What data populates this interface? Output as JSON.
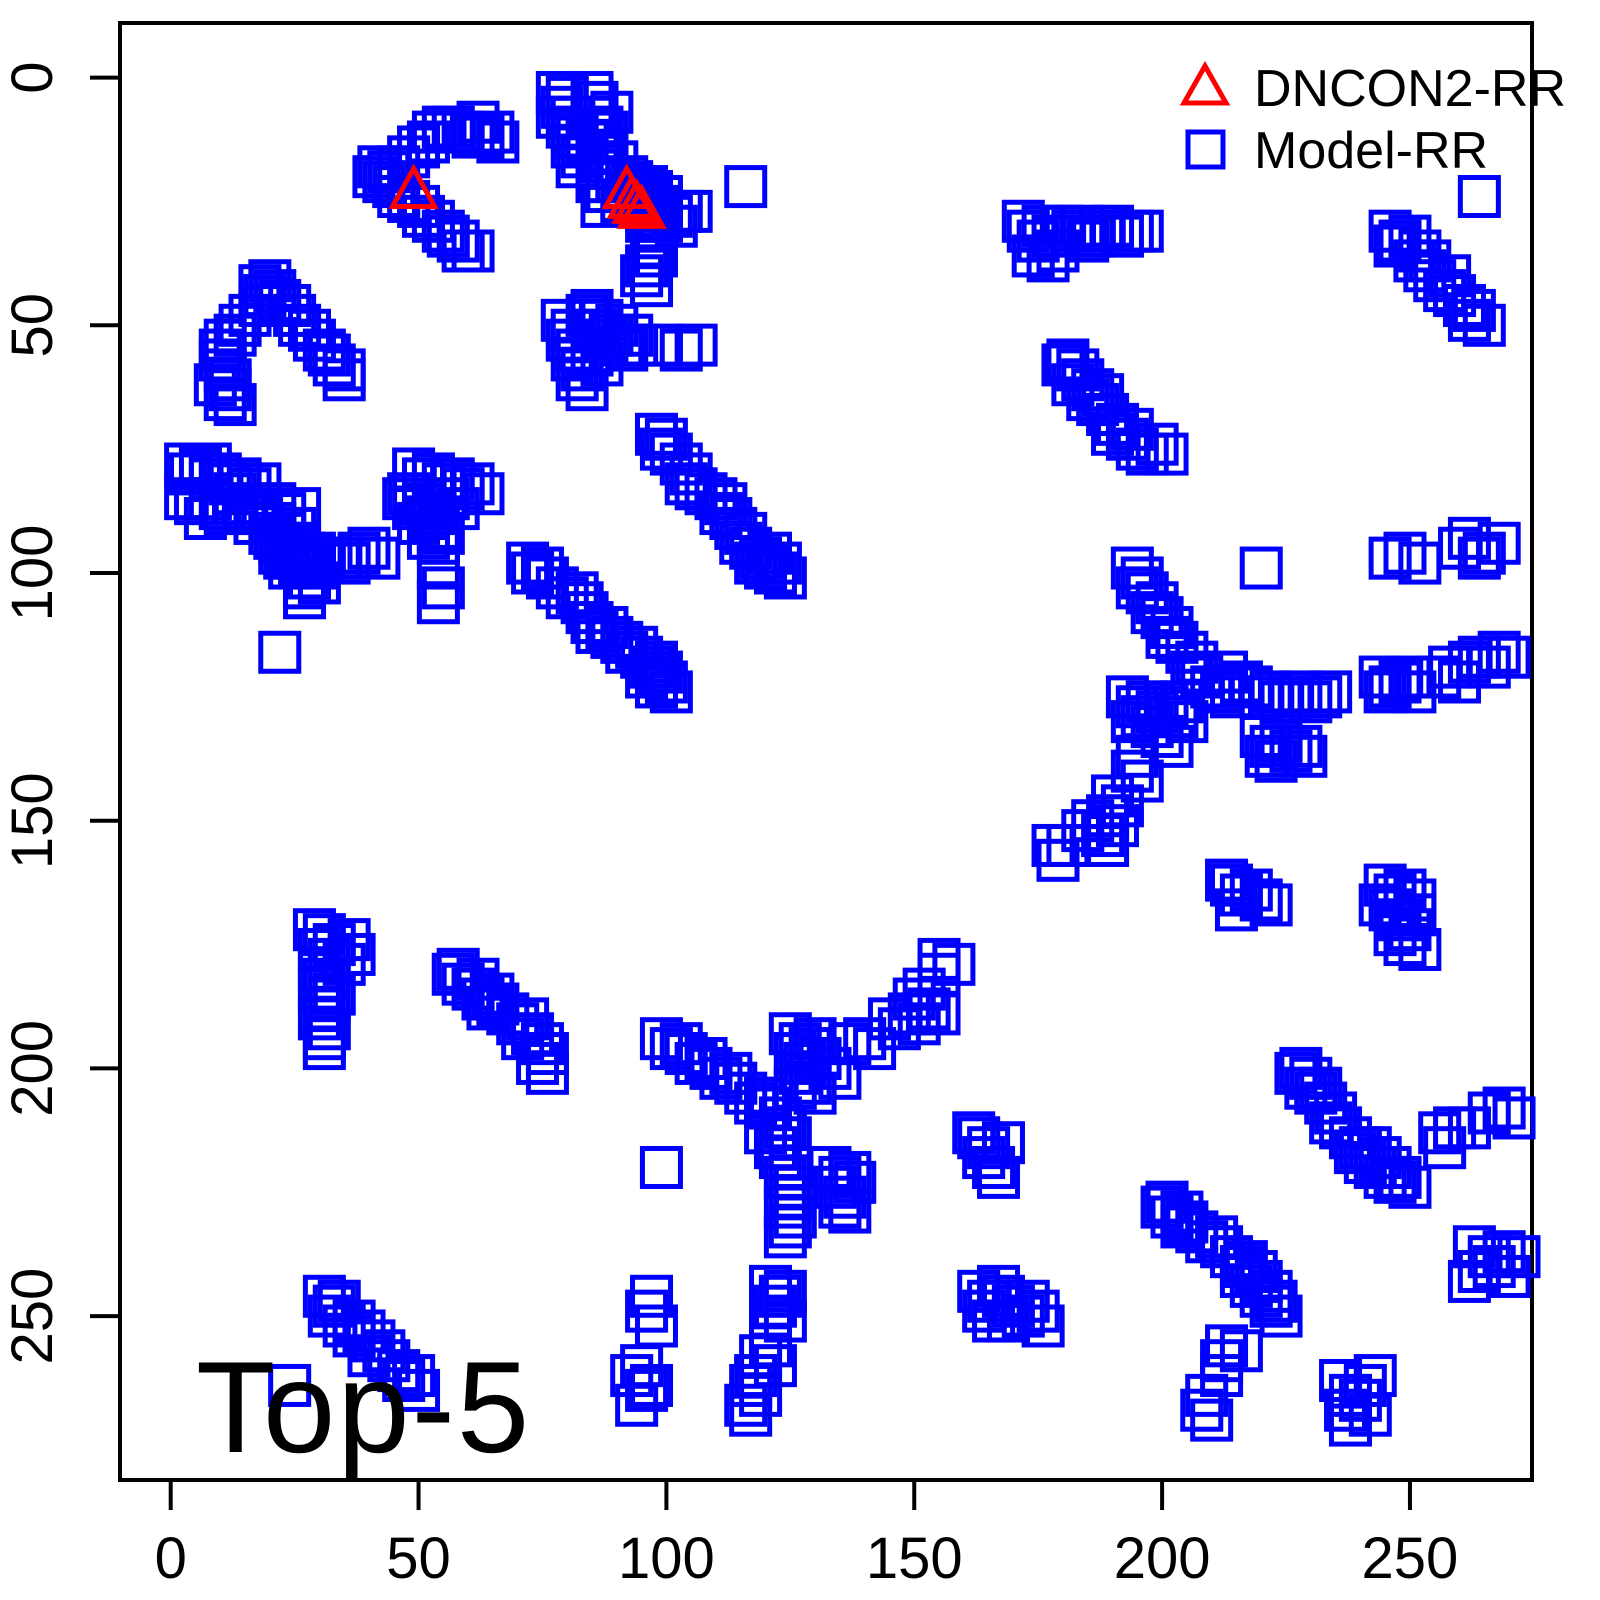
{
  "chart_data": {
    "type": "scatter",
    "title": "",
    "xlabel": "",
    "ylabel": "",
    "annotation": "Top-5",
    "x_ticks": [
      0,
      50,
      100,
      150,
      200,
      250
    ],
    "y_ticks": [
      0,
      50,
      100,
      150,
      200,
      250
    ],
    "x_range": [
      -10,
      275
    ],
    "y_range": [
      -11,
      283
    ],
    "y_axis_inverted": true,
    "grid": false,
    "legend_position": "top-right",
    "colors": {
      "dncon2": "#FF0000",
      "model": "#0000FF",
      "axis": "#000000"
    },
    "legend": [
      {
        "label": "DNCON2-RR",
        "marker": "triangle",
        "color": "#FF0000"
      },
      {
        "label": "Model-RR",
        "marker": "square",
        "color": "#0000FF"
      }
    ],
    "series": [
      {
        "name": "DNCON2-RR",
        "marker": "triangle",
        "color": "#FF0000",
        "mirrored": false,
        "points": [
          [
            49,
            23
          ],
          [
            92,
            23
          ],
          [
            93,
            25
          ],
          [
            94,
            26
          ],
          [
            95,
            27
          ]
        ]
      },
      {
        "name": "Model-RR",
        "marker": "square",
        "color": "#0000FF",
        "mirrored": true,
        "points": [
          [
            65,
            11
          ],
          [
            63,
            12
          ],
          [
            61,
            12
          ],
          [
            59,
            11
          ],
          [
            57,
            10
          ],
          [
            55,
            10
          ],
          [
            53,
            11
          ],
          [
            52,
            13
          ],
          [
            50,
            14
          ],
          [
            48,
            16
          ],
          [
            46,
            18
          ],
          [
            44,
            19
          ],
          [
            42,
            18
          ],
          [
            41,
            20
          ],
          [
            43,
            21
          ],
          [
            45,
            22
          ],
          [
            46,
            24
          ],
          [
            48,
            25
          ],
          [
            50,
            26
          ],
          [
            51,
            28
          ],
          [
            53,
            29
          ],
          [
            55,
            31
          ],
          [
            56,
            32
          ],
          [
            58,
            33
          ],
          [
            59,
            35
          ],
          [
            61,
            35
          ],
          [
            62,
            9
          ],
          [
            66,
            13
          ],
          [
            78,
            3
          ],
          [
            80,
            4
          ],
          [
            79,
            6
          ],
          [
            81,
            8
          ],
          [
            80,
            10
          ],
          [
            78,
            8
          ],
          [
            82,
            12
          ],
          [
            81,
            14
          ],
          [
            83,
            16
          ],
          [
            82,
            18
          ],
          [
            85,
            3
          ],
          [
            86,
            5
          ],
          [
            85,
            8
          ],
          [
            87,
            10
          ],
          [
            86,
            13
          ],
          [
            88,
            15
          ],
          [
            87,
            17
          ],
          [
            89,
            7
          ],
          [
            88,
            11
          ],
          [
            84,
            13
          ],
          [
            90,
            17
          ],
          [
            90,
            21
          ],
          [
            92,
            23
          ],
          [
            94,
            22
          ],
          [
            95,
            24
          ],
          [
            97,
            25
          ],
          [
            94,
            26
          ],
          [
            96,
            27
          ],
          [
            98,
            28
          ],
          [
            99,
            26
          ],
          [
            101,
            28
          ],
          [
            99,
            29
          ],
          [
            102,
            30
          ],
          [
            103,
            27
          ],
          [
            91,
            25
          ],
          [
            97,
            23
          ],
          [
            93,
            21
          ],
          [
            99,
            24
          ],
          [
            96,
            29
          ],
          [
            92,
            20
          ],
          [
            96,
            22
          ],
          [
            97,
            31
          ],
          [
            97,
            34
          ],
          [
            98,
            36
          ],
          [
            96,
            38
          ],
          [
            95,
            40
          ],
          [
            97,
            42
          ],
          [
            105,
            27
          ],
          [
            86,
            21
          ],
          [
            88,
            23
          ],
          [
            87,
            26
          ],
          [
            116,
            22
          ],
          [
            79,
            49
          ],
          [
            81,
            51
          ],
          [
            80,
            53
          ],
          [
            82,
            55
          ],
          [
            81,
            57
          ],
          [
            83,
            59
          ],
          [
            82,
            61
          ],
          [
            84,
            63
          ],
          [
            85,
            47
          ],
          [
            87,
            49
          ],
          [
            86,
            51
          ],
          [
            88,
            53
          ],
          [
            90,
            50
          ],
          [
            89,
            52
          ],
          [
            91,
            54
          ],
          [
            93,
            52
          ],
          [
            92,
            55
          ],
          [
            94,
            54
          ],
          [
            99,
            54
          ],
          [
            103,
            55
          ],
          [
            106,
            54
          ],
          [
            85,
            56
          ],
          [
            87,
            58
          ],
          [
            84,
            48
          ],
          [
            173,
            31
          ],
          [
            175,
            33
          ],
          [
            174,
            36
          ],
          [
            176,
            30
          ],
          [
            178,
            32
          ],
          [
            180,
            30
          ],
          [
            182,
            31
          ],
          [
            184,
            30
          ],
          [
            186,
            32
          ],
          [
            188,
            31
          ],
          [
            190,
            30
          ],
          [
            192,
            32
          ],
          [
            194,
            31
          ],
          [
            196,
            31
          ],
          [
            177,
            37
          ],
          [
            179,
            35
          ],
          [
            172,
            29
          ],
          [
            185,
            33
          ],
          [
            246,
            31
          ],
          [
            248,
            33
          ],
          [
            250,
            32
          ],
          [
            252,
            35
          ],
          [
            254,
            37
          ],
          [
            253,
            39
          ],
          [
            255,
            41
          ],
          [
            257,
            43
          ],
          [
            259,
            44
          ],
          [
            261,
            46
          ],
          [
            263,
            47
          ],
          [
            262,
            49
          ],
          [
            265,
            50
          ],
          [
            258,
            40
          ],
          [
            247,
            34
          ],
          [
            251,
            37
          ],
          [
            264,
            24
          ],
          [
            181,
            57
          ],
          [
            183,
            59
          ],
          [
            184,
            61
          ],
          [
            186,
            63
          ],
          [
            185,
            65
          ],
          [
            187,
            66
          ],
          [
            189,
            68
          ],
          [
            191,
            70
          ],
          [
            190,
            72
          ],
          [
            193,
            73
          ],
          [
            195,
            75
          ],
          [
            197,
            76
          ],
          [
            199,
            74
          ],
          [
            201,
            76
          ],
          [
            182,
            62
          ],
          [
            188,
            64
          ],
          [
            180,
            58
          ],
          [
            194,
            71
          ],
          [
            220,
            99
          ],
          [
            194,
            99
          ],
          [
            196,
            101
          ],
          [
            98,
            72
          ],
          [
            100,
            73
          ],
          [
            99,
            75
          ],
          [
            101,
            76
          ],
          [
            103,
            78
          ],
          [
            105,
            80
          ],
          [
            104,
            82
          ],
          [
            106,
            83
          ],
          [
            108,
            84
          ],
          [
            110,
            85
          ],
          [
            112,
            86
          ],
          [
            111,
            88
          ],
          [
            113,
            89
          ],
          [
            114,
            91
          ],
          [
            116,
            92
          ],
          [
            115,
            94
          ],
          [
            117,
            95
          ],
          [
            119,
            97
          ],
          [
            118,
            98
          ],
          [
            120,
            99
          ],
          [
            122,
            100
          ],
          [
            124,
            101
          ],
          [
            121,
            96
          ],
          [
            123,
            98
          ],
          [
            195,
            103
          ],
          [
            197,
            104
          ],
          [
            199,
            106
          ],
          [
            198,
            108
          ],
          [
            200,
            109
          ],
          [
            202,
            111
          ],
          [
            201,
            113
          ],
          [
            203,
            114
          ],
          [
            205,
            116
          ],
          [
            207,
            118
          ],
          [
            206,
            120
          ],
          [
            208,
            121
          ],
          [
            210,
            123
          ],
          [
            212,
            124
          ],
          [
            214,
            125
          ],
          [
            216,
            122
          ],
          [
            213,
            120
          ],
          [
            218,
            123
          ],
          [
            220,
            125
          ],
          [
            222,
            124
          ],
          [
            224,
            126
          ],
          [
            226,
            125
          ],
          [
            228,
            124
          ],
          [
            230,
            126
          ],
          [
            232,
            125
          ],
          [
            234,
            124
          ],
          [
            193,
            125
          ],
          [
            195,
            127
          ],
          [
            197,
            126
          ],
          [
            199,
            128
          ],
          [
            201,
            127
          ],
          [
            203,
            129
          ],
          [
            194,
            130
          ],
          [
            196,
            129
          ],
          [
            198,
            131
          ],
          [
            204,
            126
          ],
          [
            205,
            130
          ],
          [
            200,
            133
          ],
          [
            202,
            135
          ],
          [
            195,
            137
          ],
          [
            194,
            140
          ],
          [
            196,
            142
          ],
          [
            190,
            145
          ],
          [
            192,
            147
          ],
          [
            189,
            149
          ],
          [
            191,
            151
          ],
          [
            188,
            153
          ],
          [
            186,
            150
          ],
          [
            189,
            155
          ],
          [
            184,
            152
          ],
          [
            181,
            155
          ],
          [
            179,
            158
          ],
          [
            178,
            155
          ],
          [
            220,
            133
          ],
          [
            222,
            135
          ],
          [
            224,
            134
          ],
          [
            226,
            136
          ],
          [
            228,
            135
          ],
          [
            229,
            137
          ],
          [
            221,
            137
          ],
          [
            223,
            138
          ],
          [
            244,
            121
          ],
          [
            246,
            123
          ],
          [
            248,
            122
          ],
          [
            250,
            121
          ],
          [
            251,
            124
          ],
          [
            245,
            124
          ],
          [
            256,
            121
          ],
          [
            258,
            119
          ],
          [
            260,
            122
          ],
          [
            262,
            118
          ],
          [
            264,
            117
          ],
          [
            266,
            119
          ],
          [
            268,
            116
          ],
          [
            270,
            117
          ],
          [
            249,
            96
          ],
          [
            252,
            98
          ],
          [
            246,
            97
          ],
          [
            262,
            93
          ],
          [
            265,
            96
          ],
          [
            260,
            95
          ],
          [
            264,
            97
          ],
          [
            268,
            94
          ],
          [
            214,
            163
          ],
          [
            216,
            165
          ],
          [
            218,
            164
          ],
          [
            220,
            166
          ],
          [
            222,
            167
          ],
          [
            215,
            168
          ],
          [
            213,
            162
          ],
          [
            245,
            163
          ],
          [
            247,
            165
          ],
          [
            249,
            164
          ],
          [
            251,
            166
          ],
          [
            246,
            168
          ],
          [
            248,
            170
          ],
          [
            250,
            172
          ],
          [
            247,
            173
          ],
          [
            249,
            175
          ],
          [
            252,
            176
          ],
          [
            244,
            167
          ],
          [
            251,
            169
          ],
          [
            228,
            200
          ],
          [
            230,
            202
          ],
          [
            229,
            204
          ],
          [
            231,
            205
          ],
          [
            233,
            207
          ],
          [
            235,
            209
          ],
          [
            234,
            211
          ],
          [
            236,
            212
          ],
          [
            238,
            214
          ],
          [
            240,
            216
          ],
          [
            239,
            217
          ],
          [
            241,
            219
          ],
          [
            243,
            220
          ],
          [
            245,
            222
          ],
          [
            247,
            223
          ],
          [
            244,
            218
          ],
          [
            246,
            220
          ],
          [
            248,
            222
          ],
          [
            250,
            224
          ],
          [
            242,
            216
          ],
          [
            232,
            204
          ],
          [
            227,
            201
          ],
          [
            256,
            213
          ],
          [
            259,
            212
          ],
          [
            262,
            212
          ],
          [
            266,
            209
          ],
          [
            269,
            208
          ],
          [
            271,
            210
          ],
          [
            257,
            216
          ],
          [
            263,
            236
          ],
          [
            266,
            238
          ],
          [
            269,
            237
          ],
          [
            272,
            238
          ],
          [
            264,
            241
          ],
          [
            267,
            240
          ],
          [
            270,
            242
          ],
          [
            262,
            243
          ]
        ]
      }
    ]
  }
}
